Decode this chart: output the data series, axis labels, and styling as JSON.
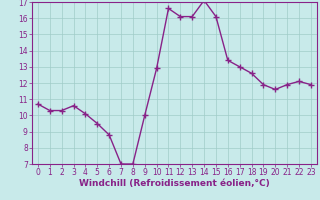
{
  "x": [
    0,
    1,
    2,
    3,
    4,
    5,
    6,
    7,
    8,
    9,
    10,
    11,
    12,
    13,
    14,
    15,
    16,
    17,
    18,
    19,
    20,
    21,
    22,
    23
  ],
  "y": [
    10.7,
    10.3,
    10.3,
    10.6,
    10.1,
    9.5,
    8.8,
    7.0,
    7.0,
    10.0,
    12.9,
    16.6,
    16.1,
    16.1,
    17.1,
    16.1,
    13.4,
    13.0,
    12.6,
    11.9,
    11.6,
    11.9,
    12.1,
    11.9
  ],
  "line_color": "#882288",
  "marker": "+",
  "marker_size": 4,
  "marker_lw": 1.0,
  "line_width": 1.0,
  "bg_color": "#c8eaea",
  "grid_color": "#a0ccc8",
  "xlabel": "Windchill (Refroidissement éolien,°C)",
  "xlim": [
    -0.5,
    23.5
  ],
  "ylim": [
    7,
    17
  ],
  "yticks": [
    7,
    8,
    9,
    10,
    11,
    12,
    13,
    14,
    15,
    16,
    17
  ],
  "xticks": [
    0,
    1,
    2,
    3,
    4,
    5,
    6,
    7,
    8,
    9,
    10,
    11,
    12,
    13,
    14,
    15,
    16,
    17,
    18,
    19,
    20,
    21,
    22,
    23
  ],
  "tick_fontsize": 5.5,
  "label_fontsize": 6.5,
  "tick_color": "#882288",
  "label_color": "#882288",
  "spine_color": "#882288"
}
